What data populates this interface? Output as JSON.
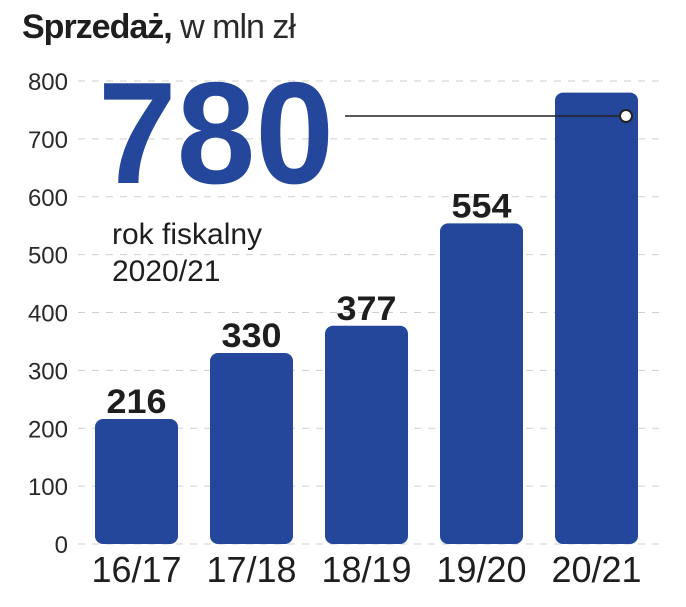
{
  "chart_data": {
    "type": "bar",
    "title": "Sprzedaż,",
    "subtitle": "w mln zł",
    "categories": [
      "16/17",
      "17/18",
      "18/19",
      "19/20",
      "20/21"
    ],
    "values": [
      216,
      330,
      377,
      554,
      780
    ],
    "data_labels": [
      "216",
      "330",
      "377",
      "554",
      ""
    ],
    "ylim": [
      0,
      800
    ],
    "yticks": [
      0,
      100,
      200,
      300,
      400,
      500,
      600,
      700,
      800
    ],
    "grid": true,
    "bar_color": "#24479b",
    "highlight": {
      "value": "780",
      "line1": "rok fiskalny",
      "line2": "2020/21",
      "color": "#24479b"
    }
  }
}
